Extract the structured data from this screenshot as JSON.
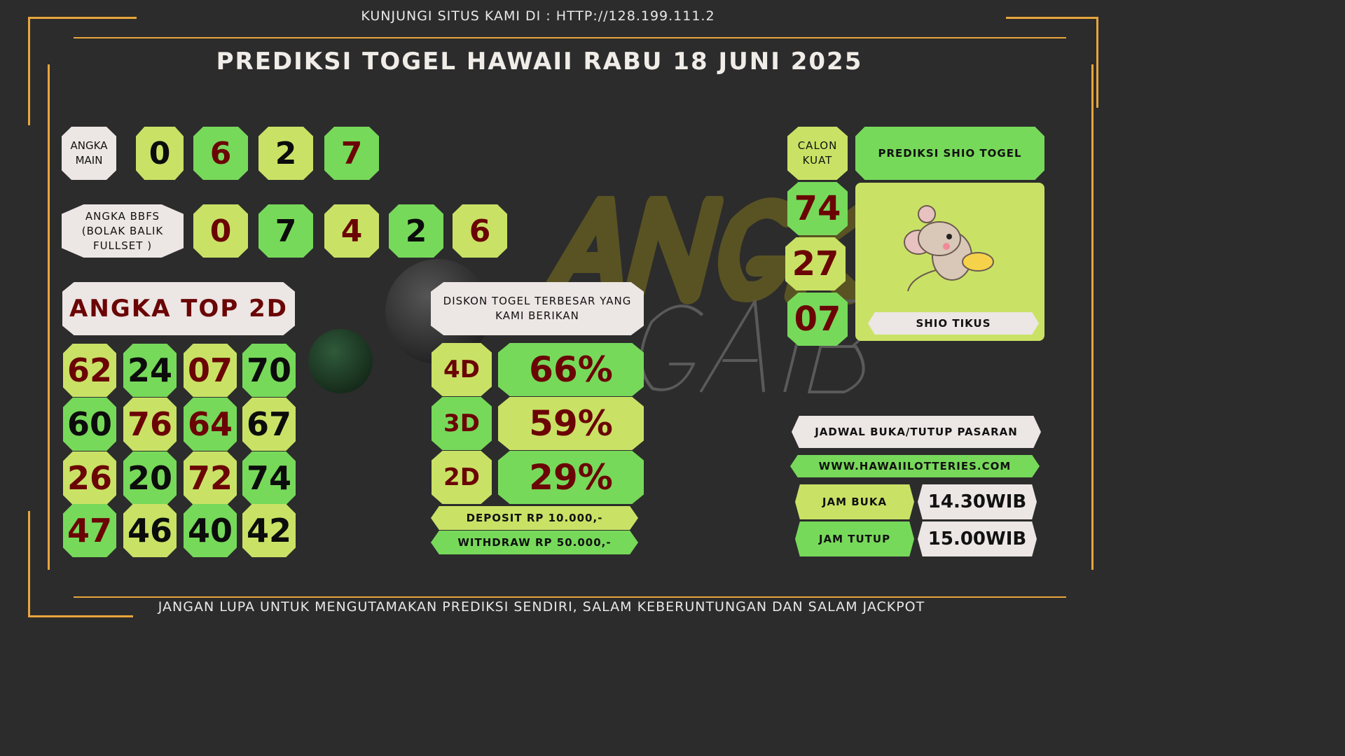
{
  "header": {
    "site": "KUNJUNGI SITUS KAMI DI : HTTP://128.199.111.2",
    "title": "PREDIKSI TOGEL HAWAII RABU 18 JUNI 2025"
  },
  "watermark": "ANGKA GAIB",
  "angka_main": {
    "label": "ANGKA MAIN",
    "digits": [
      "0",
      "6",
      "2",
      "7"
    ]
  },
  "bbfs": {
    "label": "ANGKA BBFS (BOLAK BALIK FULLSET )",
    "digits": [
      "0",
      "7",
      "4",
      "2",
      "6"
    ]
  },
  "top2d": {
    "label": "ANGKA TOP 2D",
    "numbers": [
      "62",
      "24",
      "07",
      "70",
      "60",
      "76",
      "64",
      "67",
      "26",
      "20",
      "72",
      "74",
      "47",
      "46",
      "40",
      "42"
    ]
  },
  "diskon": {
    "label": "DISKON TOGEL TERBESAR YANG KAMI BERIKAN",
    "rows": [
      {
        "type": "4D",
        "value": "66%"
      },
      {
        "type": "3D",
        "value": "59%"
      },
      {
        "type": "2D",
        "value": "29%"
      }
    ],
    "deposit": "DEPOSIT RP 10.000,-",
    "withdraw": "WITHDRAW RP 50.000,-"
  },
  "calon": {
    "label": "CALON KUAT",
    "numbers": [
      "74",
      "27",
      "07"
    ]
  },
  "shio": {
    "label": "PREDIKSI SHIO TOGEL",
    "name": "SHIO TIKUS"
  },
  "jadwal": {
    "label": "JADWAL BUKA/TUTUP PASARAN",
    "url": "WWW.HAWAIILOTTERIES.COM",
    "buka_label": "JAM BUKA",
    "buka": "14.30WIB",
    "tutup_label": "JAM TUTUP",
    "tutup": "15.00WIB"
  },
  "footer": "JANGAN LUPA UNTUK MENGUTAMAKAN PREDIKSI SENDIRI, SALAM KEBERUNTUNGAN DAN SALAM JACKPOT",
  "colors": {
    "light_green": "#c9e265",
    "green": "#77d95a",
    "dark_red": "#6b0505",
    "frame": "#e8a53c"
  }
}
